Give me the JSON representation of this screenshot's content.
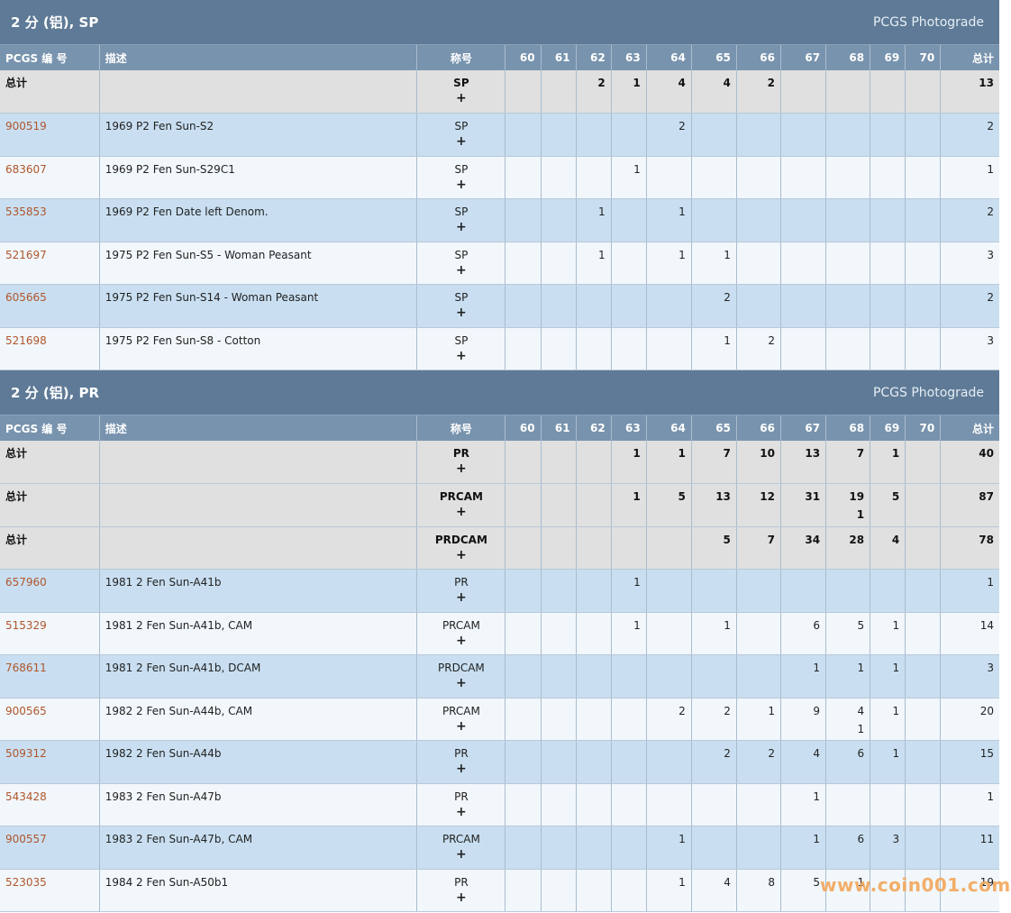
{
  "columns": {
    "pcgs": "PCGS 编 号",
    "desc": "描述",
    "designation": "称号",
    "grades": [
      "60",
      "61",
      "62",
      "63",
      "64",
      "65",
      "66",
      "67",
      "68",
      "69",
      "70"
    ],
    "total": "总计"
  },
  "sections": [
    {
      "title": "2 分 (铝), SP",
      "photograde": "PCGS Photograde",
      "totals": [
        {
          "label": "总计",
          "designation": "SP",
          "plus": "+",
          "grades": [
            "",
            "",
            "2",
            "1",
            "4",
            "4",
            "2",
            "",
            "",
            "",
            ""
          ],
          "total": "13"
        }
      ],
      "rows": [
        {
          "pcgs": "900519",
          "desc": "1969 P2 Fen Sun-S2",
          "designation": "SP",
          "plus": "+",
          "grades": [
            "",
            "",
            "",
            "",
            "2",
            "",
            "",
            "",
            "",
            "",
            ""
          ],
          "total": "2"
        },
        {
          "pcgs": "683607",
          "desc": "1969 P2 Fen Sun-S29C1",
          "designation": "SP",
          "plus": "+",
          "grades": [
            "",
            "",
            "",
            "1",
            "",
            "",
            "",
            "",
            "",
            "",
            ""
          ],
          "total": "1"
        },
        {
          "pcgs": "535853",
          "desc": "1969 P2 Fen Date left Denom.",
          "designation": "SP",
          "plus": "+",
          "grades": [
            "",
            "",
            "1",
            "",
            "1",
            "",
            "",
            "",
            "",
            "",
            ""
          ],
          "total": "2"
        },
        {
          "pcgs": "521697",
          "desc": "1975 P2 Fen Sun-S5 - Woman Peasant",
          "designation": "SP",
          "plus": "+",
          "grades": [
            "",
            "",
            "1",
            "",
            "1",
            "1",
            "",
            "",
            "",
            "",
            ""
          ],
          "total": "3"
        },
        {
          "pcgs": "605665",
          "desc": "1975 P2 Fen Sun-S14 - Woman Peasant",
          "designation": "SP",
          "plus": "+",
          "grades": [
            "",
            "",
            "",
            "",
            "",
            "2",
            "",
            "",
            "",
            "",
            ""
          ],
          "total": "2"
        },
        {
          "pcgs": "521698",
          "desc": "1975 P2 Fen Sun-S8 - Cotton",
          "designation": "SP",
          "plus": "+",
          "grades": [
            "",
            "",
            "",
            "",
            "",
            "1",
            "2",
            "",
            "",
            "",
            ""
          ],
          "total": "3"
        }
      ]
    },
    {
      "title": "2 分 (铝), PR",
      "photograde": "PCGS Photograde",
      "totals": [
        {
          "label": "总计",
          "designation": "PR",
          "plus": "+",
          "grades": [
            "",
            "",
            "",
            "1",
            "1",
            "7",
            "10",
            "13",
            "7",
            "1",
            ""
          ],
          "total": "40"
        },
        {
          "label": "总计",
          "designation": "PRCAM",
          "plus": "+",
          "grades": [
            "",
            "",
            "",
            "1",
            "5",
            "13",
            "12",
            "31",
            "19",
            "5",
            ""
          ],
          "plus_grades": [
            "",
            "",
            "",
            "",
            "",
            "",
            "",
            "",
            "1",
            "",
            ""
          ],
          "total": "87"
        },
        {
          "label": "总计",
          "designation": "PRDCAM",
          "plus": "+",
          "grades": [
            "",
            "",
            "",
            "",
            "",
            "5",
            "7",
            "34",
            "28",
            "4",
            ""
          ],
          "total": "78"
        }
      ],
      "rows": [
        {
          "pcgs": "657960",
          "desc": "1981 2 Fen Sun-A41b",
          "designation": "PR",
          "plus": "+",
          "grades": [
            "",
            "",
            "",
            "1",
            "",
            "",
            "",
            "",
            "",
            "",
            ""
          ],
          "total": "1"
        },
        {
          "pcgs": "515329",
          "desc": "1981 2 Fen Sun-A41b, CAM",
          "designation": "PRCAM",
          "plus": "+",
          "grades": [
            "",
            "",
            "",
            "1",
            "",
            "1",
            "",
            "6",
            "5",
            "1",
            ""
          ],
          "total": "14"
        },
        {
          "pcgs": "768611",
          "desc": "1981 2 Fen Sun-A41b, DCAM",
          "designation": "PRDCAM",
          "plus": "+",
          "grades": [
            "",
            "",
            "",
            "",
            "",
            "",
            "",
            "1",
            "1",
            "1",
            ""
          ],
          "total": "3"
        },
        {
          "pcgs": "900565",
          "desc": "1982 2 Fen Sun-A44b, CAM",
          "designation": "PRCAM",
          "plus": "+",
          "grades": [
            "",
            "",
            "",
            "",
            "2",
            "2",
            "1",
            "9",
            "4",
            "1",
            ""
          ],
          "plus_grades": [
            "",
            "",
            "",
            "",
            "",
            "",
            "",
            "",
            "1",
            "",
            ""
          ],
          "total": "20"
        },
        {
          "pcgs": "509312",
          "desc": "1982 2 Fen Sun-A44b",
          "designation": "PR",
          "plus": "+",
          "grades": [
            "",
            "",
            "",
            "",
            "",
            "2",
            "2",
            "4",
            "6",
            "1",
            ""
          ],
          "total": "15"
        },
        {
          "pcgs": "543428",
          "desc": "1983 2 Fen Sun-A47b",
          "designation": "PR",
          "plus": "+",
          "grades": [
            "",
            "",
            "",
            "",
            "",
            "",
            "",
            "1",
            "",
            "",
            ""
          ],
          "total": "1"
        },
        {
          "pcgs": "900557",
          "desc": "1983 2 Fen Sun-A47b, CAM",
          "designation": "PRCAM",
          "plus": "+",
          "grades": [
            "",
            "",
            "",
            "",
            "1",
            "",
            "",
            "1",
            "6",
            "3",
            ""
          ],
          "total": "11"
        },
        {
          "pcgs": "523035",
          "desc": "1984 2 Fen Sun-A50b1",
          "designation": "PR",
          "plus": "+",
          "grades": [
            "",
            "",
            "",
            "",
            "1",
            "4",
            "8",
            "5",
            "1",
            "",
            ""
          ],
          "total": "19"
        }
      ]
    }
  ],
  "watermark": "www.coin001.com"
}
